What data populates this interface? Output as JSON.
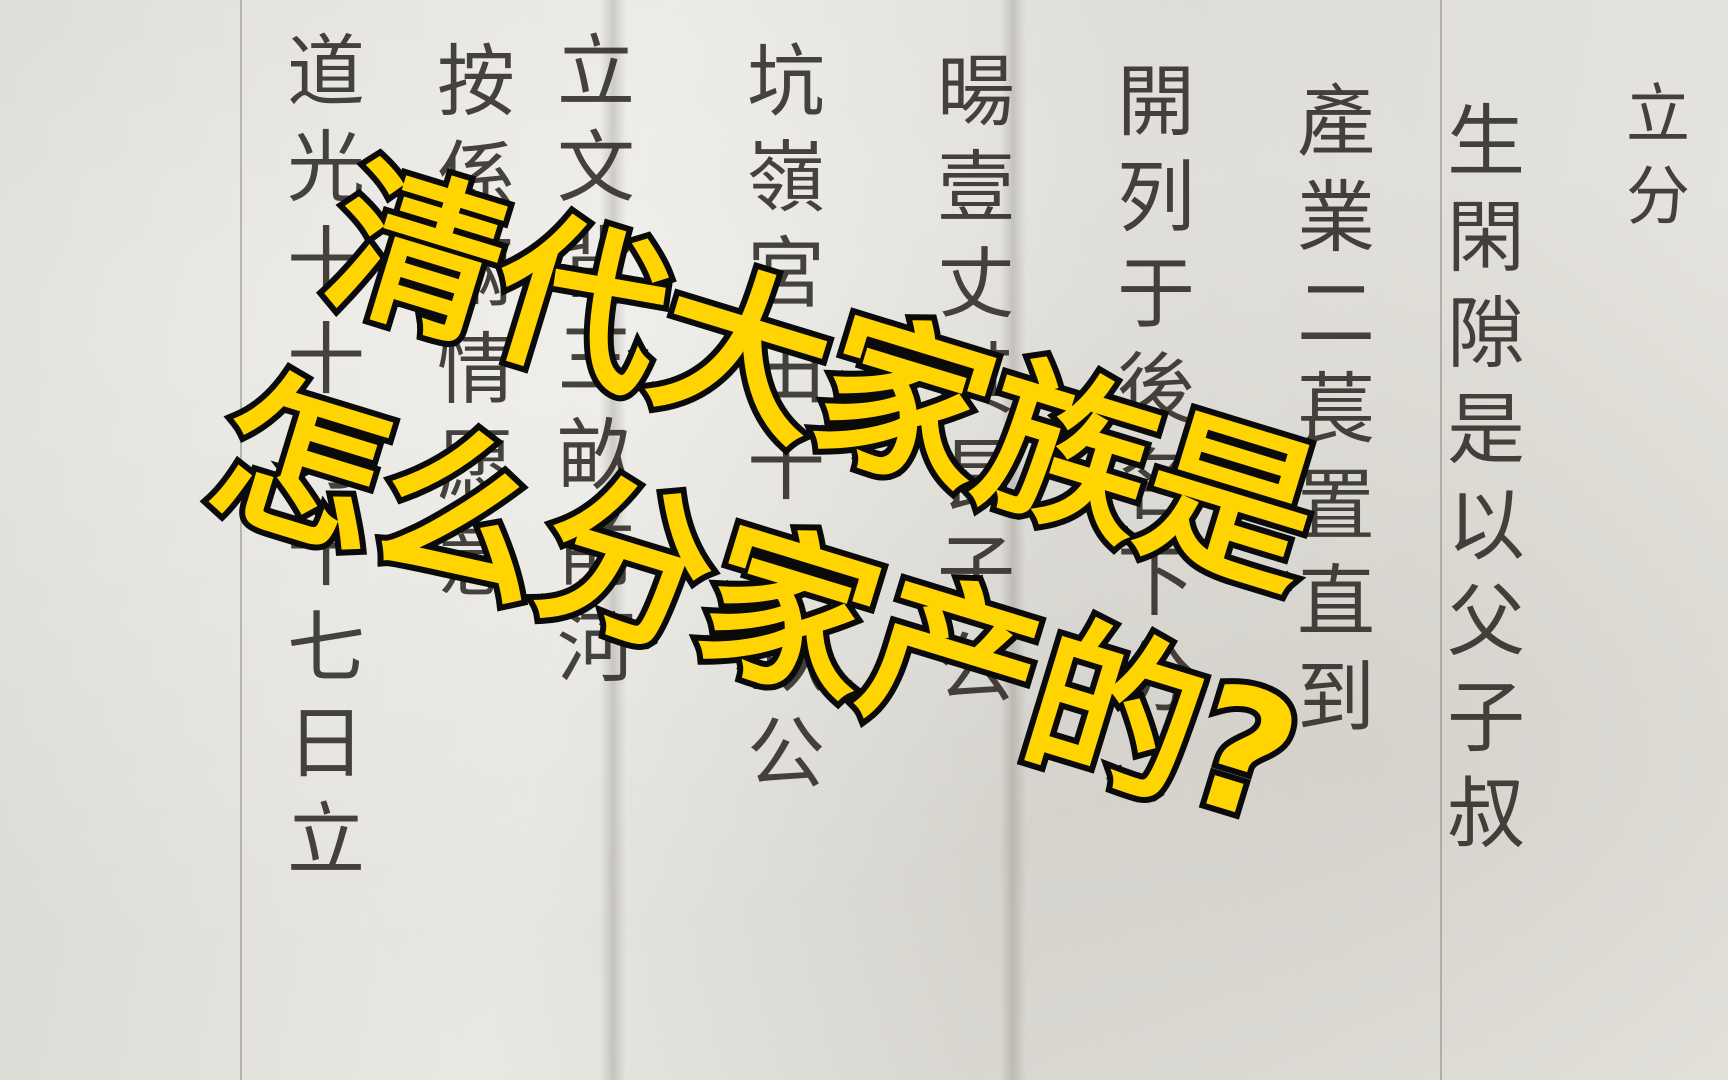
{
  "image": {
    "kind": "photo-of-handwritten-chinese-document-with-overlay-title",
    "background_color": "#e4e2dc",
    "ink_color": "#2a2723",
    "title_fill_color": "#ffd400",
    "title_outline_color": "#0a0a0a"
  },
  "document": {
    "columns": [
      "立分",
      "生閑隙是以父子叔",
      "產業二萇置直到",
      "開列于後名下分",
      "暘壹丈其長子公",
      "坑嶺宮田十八畝公",
      "立文背三畝前河",
      "按係兩情愿意",
      "道光十十月十七日立"
    ]
  },
  "overlay": {
    "title_line1": "清代大家族是",
    "title_line2": "怎么分家产的?"
  }
}
